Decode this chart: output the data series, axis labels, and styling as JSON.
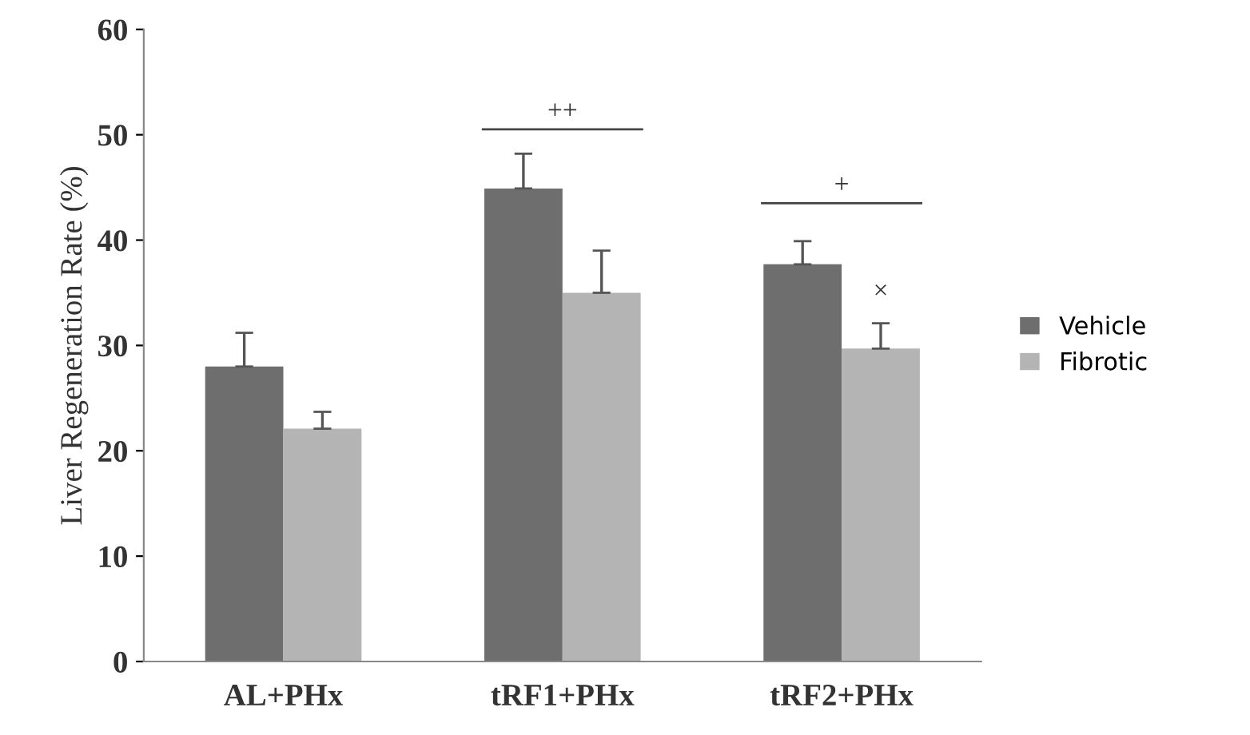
{
  "chart_data": {
    "type": "bar",
    "ylabel": "Liver Regeneration Rate (%)",
    "categories": [
      "AL+PHx",
      "tRF1+PHx",
      "tRF2+PHx"
    ],
    "series": [
      {
        "name": "Vehicle",
        "color": "#6e6e6e",
        "values": [
          28.0,
          44.9,
          37.7
        ],
        "errors": [
          [
            28.0,
            31.2
          ],
          [
            44.9,
            48.2
          ],
          [
            37.7,
            39.9
          ]
        ]
      },
      {
        "name": "Fibrotic",
        "color": "#b4b4b4",
        "values": [
          22.1,
          35.0,
          29.7
        ],
        "errors": [
          [
            22.1,
            23.7
          ],
          [
            35.0,
            39.0
          ],
          [
            29.7,
            32.1
          ]
        ]
      }
    ],
    "ylim": [
      0,
      60
    ],
    "yticks": [
      0,
      10,
      20,
      30,
      40,
      50,
      60
    ],
    "grid": false,
    "legend": "right",
    "annotations": [
      "++",
      "+",
      "×"
    ]
  }
}
